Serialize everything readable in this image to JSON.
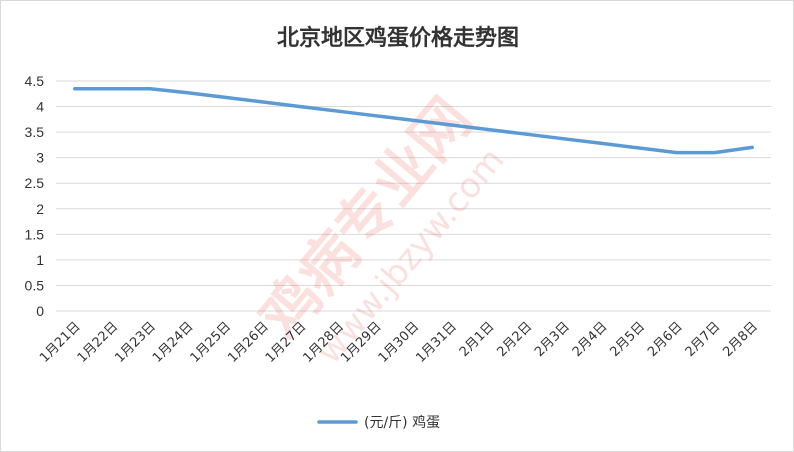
{
  "chart_data": {
    "type": "line",
    "title": "北京地区鸡蛋价格走势图",
    "categories": [
      "1月21日",
      "1月22日",
      "1月23日",
      "1月24日",
      "1月25日",
      "1月26日",
      "1月27日",
      "1月28日",
      "1月29日",
      "1月30日",
      "1月31日",
      "2月1日",
      "2月2日",
      "2月3日",
      "2月4日",
      "2月5日",
      "2月6日",
      "2月7日",
      "2月8日"
    ],
    "series": [
      {
        "name": "(元/斤) 鸡蛋",
        "values": [
          4.35,
          4.35,
          4.35,
          4.27,
          4.18,
          4.09,
          4.0,
          3.91,
          3.82,
          3.73,
          3.64,
          3.55,
          3.46,
          3.37,
          3.28,
          3.19,
          3.1,
          3.1,
          3.2
        ],
        "color": "#5b9bd5"
      }
    ],
    "ylim": [
      0,
      4.5
    ],
    "yticks": [
      "0",
      "0.5",
      "1",
      "1.5",
      "2",
      "2.5",
      "3",
      "3.5",
      "4",
      "4.5"
    ],
    "xlabel": "",
    "ylabel": "",
    "grid": true,
    "legend_position": "bottom"
  },
  "watermark": {
    "text": "鸡病专业网",
    "url": "www.jbzyw.com",
    "color": "#e8483b"
  }
}
